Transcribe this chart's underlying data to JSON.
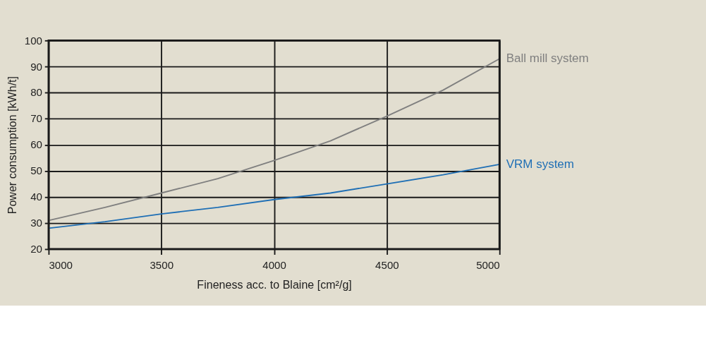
{
  "chart_data": {
    "type": "line",
    "xlabel": "Fineness acc. to Blaine [cm²/g]",
    "ylabel": "Power consumption [kWh/t]",
    "x": [
      3000,
      3250,
      3500,
      3750,
      4000,
      4250,
      4500,
      4750,
      5000
    ],
    "series": [
      {
        "name": "Ball mill system",
        "color": "#7f7f7f",
        "values": [
          31,
          36,
          41.5,
          47,
          54,
          61.5,
          71,
          81,
          93
        ]
      },
      {
        "name": "VRM system",
        "color": "#1f6fb5",
        "values": [
          28,
          30.5,
          33.5,
          36,
          39,
          41.5,
          45,
          48.5,
          52.5
        ]
      }
    ],
    "xlim": [
      3000,
      5000
    ],
    "xticks": [
      3000,
      3500,
      4000,
      4500,
      5000
    ],
    "ylim": [
      20,
      100
    ],
    "yticks": [
      20,
      30,
      40,
      50,
      60,
      70,
      80,
      90,
      100
    ],
    "grid": true,
    "legend": false,
    "marker": "none",
    "line_style": "solid"
  }
}
